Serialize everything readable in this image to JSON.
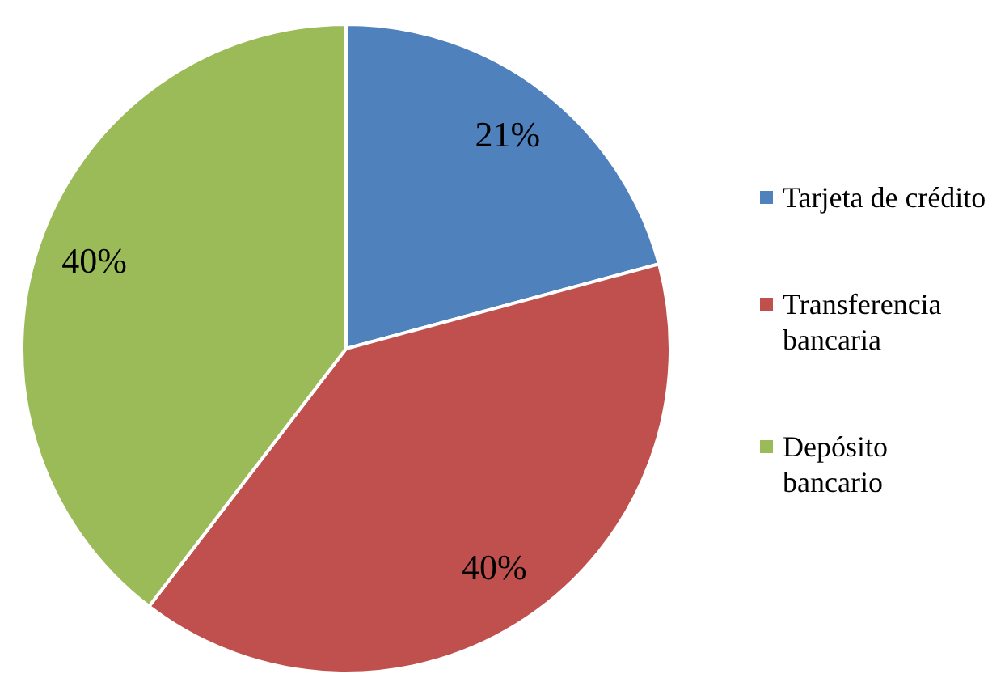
{
  "chart_data": {
    "type": "pie",
    "categories": [
      "Tarjeta de crédito",
      "Transferencia bancaria",
      "Depósito bancario"
    ],
    "values": [
      21,
      40,
      40
    ],
    "colors": [
      "#4f81bd",
      "#c0504d",
      "#9bbb59"
    ],
    "value_labels": [
      "21%",
      "40%",
      "40%"
    ],
    "legend": "right"
  }
}
